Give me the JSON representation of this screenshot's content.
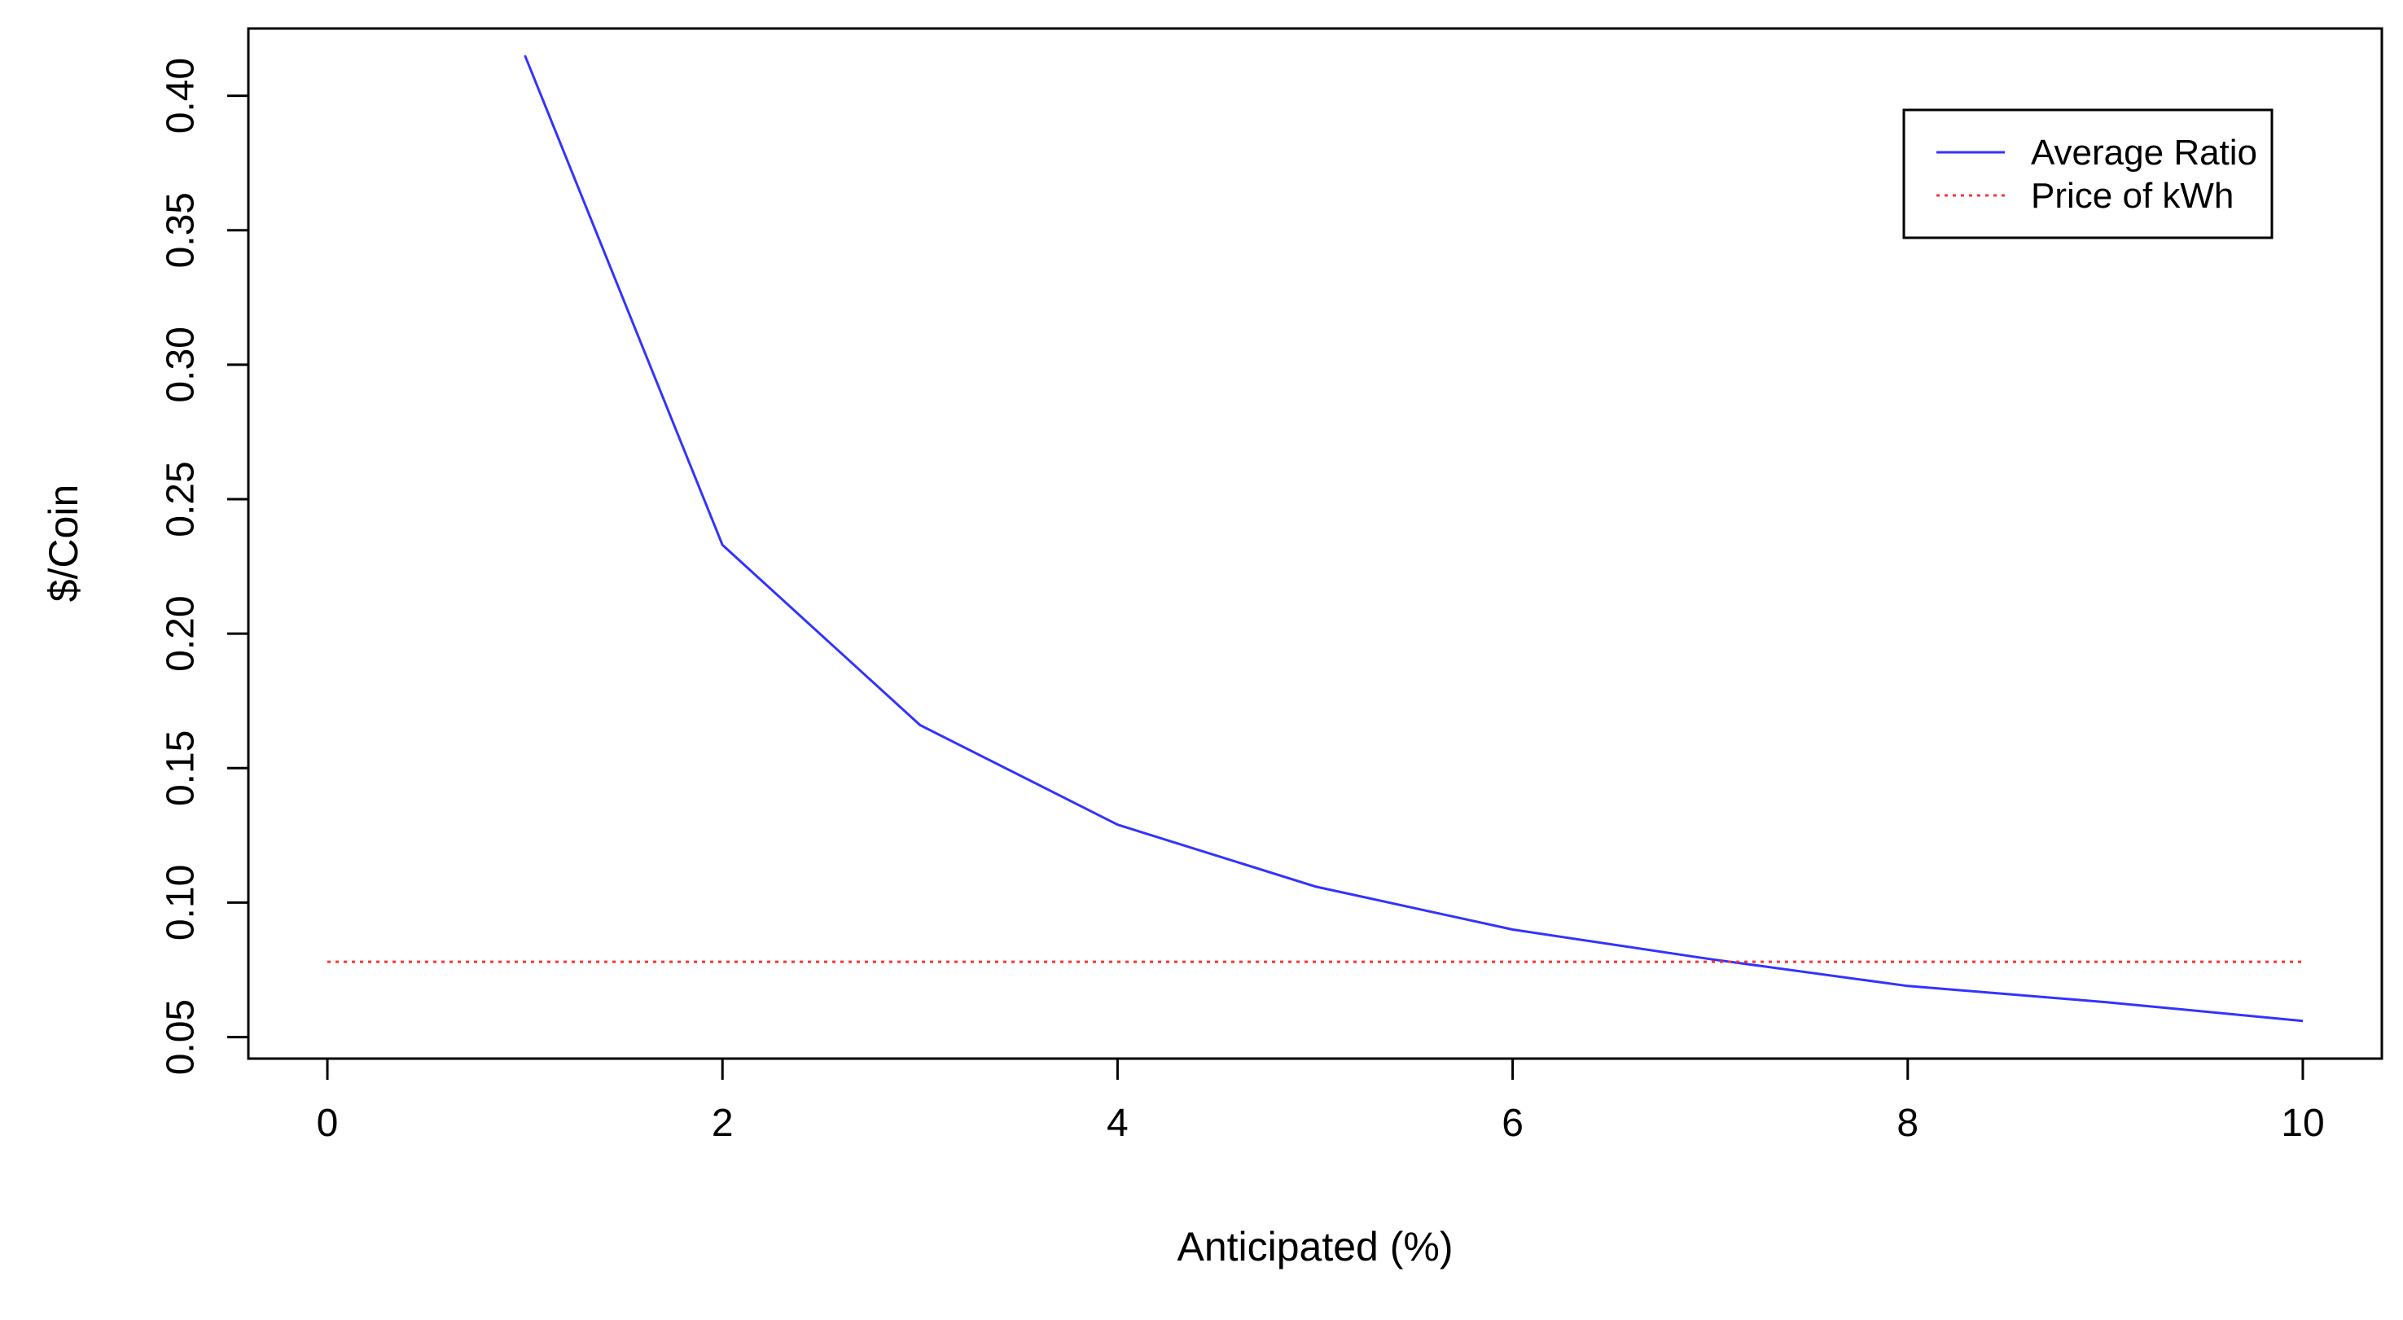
{
  "chart_data": {
    "type": "line",
    "xlabel": "Anticipated (%)",
    "ylabel": "$/Coin",
    "xlim": [
      -0.4,
      10.4
    ],
    "ylim": [
      0.042,
      0.425
    ],
    "x_ticks": [
      0,
      2,
      4,
      6,
      8,
      10
    ],
    "y_ticks": [
      0.05,
      0.1,
      0.15,
      0.2,
      0.25,
      0.3,
      0.35,
      0.4
    ],
    "x_tick_labels": [
      "0",
      "2",
      "4",
      "6",
      "8",
      "10"
    ],
    "y_tick_labels": [
      "0.05",
      "0.10",
      "0.15",
      "0.20",
      "0.25",
      "0.30",
      "0.35",
      "0.40"
    ],
    "grid": false,
    "legend_position": "top-right",
    "series": [
      {
        "name": "Average Ratio",
        "color": "#3333ff",
        "style": "solid",
        "x": [
          1,
          2,
          3,
          4,
          5,
          6,
          7,
          8,
          9,
          10
        ],
        "y": [
          0.415,
          0.233,
          0.166,
          0.129,
          0.106,
          0.09,
          0.079,
          0.069,
          0.063,
          0.056
        ]
      },
      {
        "name": "Price of kWh",
        "color": "#ff3333",
        "style": "dotted",
        "x": [
          0,
          10
        ],
        "y": [
          0.078,
          0.078
        ]
      }
    ]
  }
}
